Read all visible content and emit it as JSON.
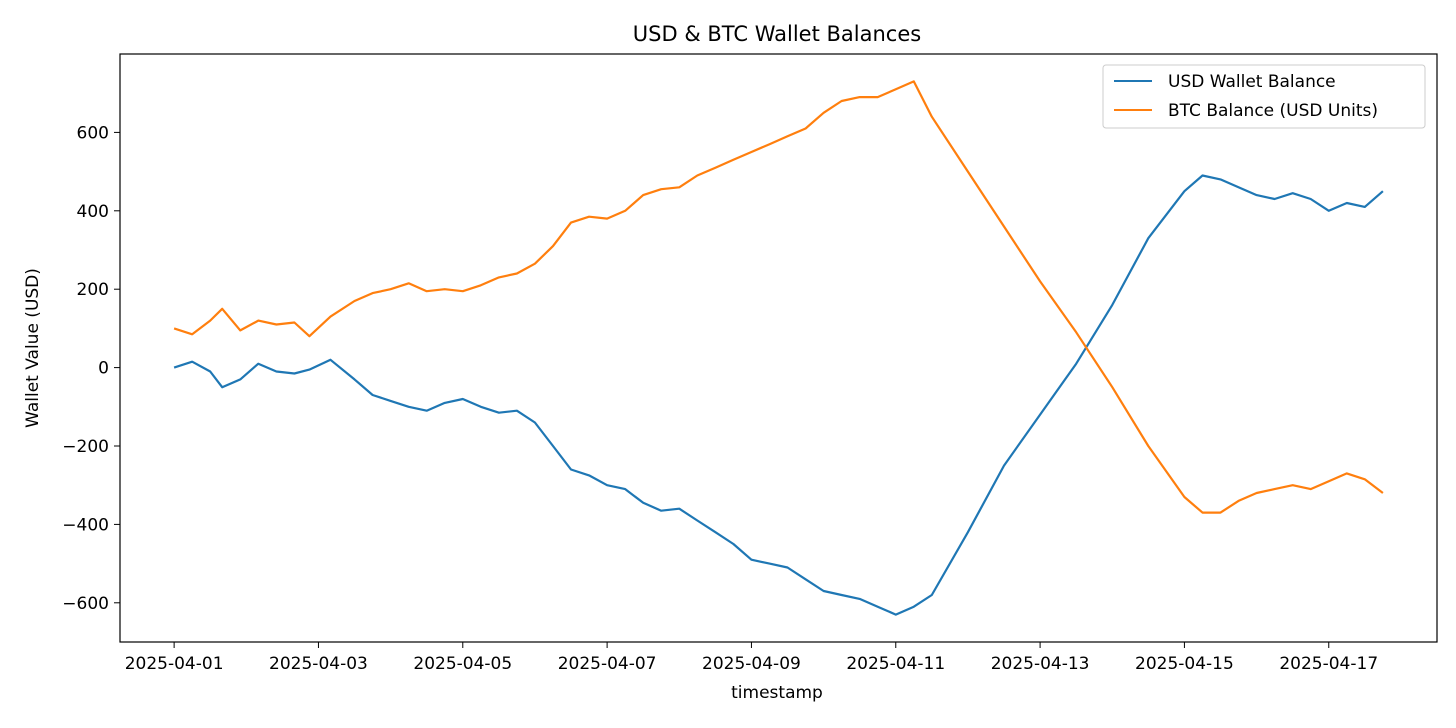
{
  "chart_data": {
    "type": "line",
    "title": "USD & BTC Wallet Balances",
    "xlabel": "timestamp",
    "ylabel": "Wallet Value (USD)",
    "x_start": "2025-04-01",
    "x_end": "2025-04-17T18:00",
    "xlim": [
      "2025-03-31T06:00",
      "2025-04-18T12:00"
    ],
    "ylim": [
      -700,
      800
    ],
    "x_ticks": [
      "2025-04-01",
      "2025-04-03",
      "2025-04-05",
      "2025-04-07",
      "2025-04-09",
      "2025-04-11",
      "2025-04-13",
      "2025-04-15",
      "2025-04-17"
    ],
    "y_ticks": [
      -600,
      -400,
      -200,
      0,
      200,
      400,
      600
    ],
    "y_tick_labels": [
      "−600",
      "−400",
      "−200",
      "0",
      "200",
      "400",
      "600"
    ],
    "grid": false,
    "legend_position": "top-right",
    "series": [
      {
        "name": "USD Wallet Balance",
        "color": "#1f77b4",
        "x": [
          "2025-04-01T00:00",
          "2025-04-01T06:00",
          "2025-04-01T12:00",
          "2025-04-01T16:00",
          "2025-04-01T22:00",
          "2025-04-02T04:00",
          "2025-04-02T10:00",
          "2025-04-02T16:00",
          "2025-04-02T21:00",
          "2025-04-03T04:00",
          "2025-04-03T12:00",
          "2025-04-03T18:00",
          "2025-04-04T00:00",
          "2025-04-04T06:00",
          "2025-04-04T12:00",
          "2025-04-04T18:00",
          "2025-04-05T00:00",
          "2025-04-05T06:00",
          "2025-04-05T12:00",
          "2025-04-05T18:00",
          "2025-04-06T00:00",
          "2025-04-06T06:00",
          "2025-04-06T12:00",
          "2025-04-06T18:00",
          "2025-04-07T00:00",
          "2025-04-07T06:00",
          "2025-04-07T12:00",
          "2025-04-07T18:00",
          "2025-04-08T00:00",
          "2025-04-08T06:00",
          "2025-04-08T12:00",
          "2025-04-08T18:00",
          "2025-04-09T00:00",
          "2025-04-09T06:00",
          "2025-04-09T12:00",
          "2025-04-09T18:00",
          "2025-04-10T00:00",
          "2025-04-10T06:00",
          "2025-04-10T12:00",
          "2025-04-10T18:00",
          "2025-04-11T00:00",
          "2025-04-11T06:00",
          "2025-04-11T12:00",
          "2025-04-12T00:00",
          "2025-04-12T12:00",
          "2025-04-13T00:00",
          "2025-04-13T12:00",
          "2025-04-14T00:00",
          "2025-04-14T12:00",
          "2025-04-15T00:00",
          "2025-04-15T06:00",
          "2025-04-15T12:00",
          "2025-04-15T18:00",
          "2025-04-16T00:00",
          "2025-04-16T06:00",
          "2025-04-16T12:00",
          "2025-04-16T18:00",
          "2025-04-17T00:00",
          "2025-04-17T06:00",
          "2025-04-17T12:00",
          "2025-04-17T18:00"
        ],
        "y": [
          0,
          15,
          -10,
          -50,
          -30,
          10,
          -10,
          -15,
          -5,
          20,
          -30,
          -70,
          -85,
          -100,
          -110,
          -90,
          -80,
          -100,
          -115,
          -110,
          -140,
          -200,
          -260,
          -275,
          -300,
          -310,
          -345,
          -365,
          -360,
          -390,
          -420,
          -450,
          -490,
          -500,
          -510,
          -540,
          -570,
          -580,
          -590,
          -610,
          -630,
          -610,
          -580,
          -420,
          -250,
          -120,
          10,
          160,
          330,
          450,
          490,
          480,
          460,
          440,
          430,
          445,
          430,
          400,
          420,
          410,
          450
        ]
      },
      {
        "name": "BTC Balance (USD Units)",
        "color": "#ff7f0e",
        "x": [
          "2025-04-01T00:00",
          "2025-04-01T06:00",
          "2025-04-01T12:00",
          "2025-04-01T16:00",
          "2025-04-01T22:00",
          "2025-04-02T04:00",
          "2025-04-02T10:00",
          "2025-04-02T16:00",
          "2025-04-02T21:00",
          "2025-04-03T04:00",
          "2025-04-03T12:00",
          "2025-04-03T18:00",
          "2025-04-04T00:00",
          "2025-04-04T06:00",
          "2025-04-04T12:00",
          "2025-04-04T18:00",
          "2025-04-05T00:00",
          "2025-04-05T06:00",
          "2025-04-05T12:00",
          "2025-04-05T18:00",
          "2025-04-06T00:00",
          "2025-04-06T06:00",
          "2025-04-06T12:00",
          "2025-04-06T18:00",
          "2025-04-07T00:00",
          "2025-04-07T06:00",
          "2025-04-07T12:00",
          "2025-04-07T18:00",
          "2025-04-08T00:00",
          "2025-04-08T06:00",
          "2025-04-08T12:00",
          "2025-04-08T18:00",
          "2025-04-09T00:00",
          "2025-04-09T06:00",
          "2025-04-09T12:00",
          "2025-04-09T18:00",
          "2025-04-10T00:00",
          "2025-04-10T06:00",
          "2025-04-10T12:00",
          "2025-04-10T18:00",
          "2025-04-11T00:00",
          "2025-04-11T06:00",
          "2025-04-11T12:00",
          "2025-04-12T00:00",
          "2025-04-12T12:00",
          "2025-04-13T00:00",
          "2025-04-13T12:00",
          "2025-04-14T00:00",
          "2025-04-14T12:00",
          "2025-04-15T00:00",
          "2025-04-15T06:00",
          "2025-04-15T12:00",
          "2025-04-15T18:00",
          "2025-04-16T00:00",
          "2025-04-16T06:00",
          "2025-04-16T12:00",
          "2025-04-16T18:00",
          "2025-04-17T00:00",
          "2025-04-17T06:00",
          "2025-04-17T12:00",
          "2025-04-17T18:00"
        ],
        "y": [
          100,
          85,
          120,
          150,
          95,
          120,
          110,
          115,
          80,
          130,
          170,
          190,
          200,
          215,
          195,
          200,
          195,
          210,
          230,
          240,
          265,
          310,
          370,
          385,
          380,
          400,
          440,
          455,
          460,
          490,
          510,
          530,
          550,
          570,
          590,
          610,
          650,
          680,
          690,
          690,
          710,
          730,
          640,
          500,
          360,
          220,
          90,
          -50,
          -200,
          -330,
          -370,
          -370,
          -340,
          -320,
          -310,
          -300,
          -310,
          -290,
          -270,
          -285,
          -320
        ]
      }
    ]
  }
}
